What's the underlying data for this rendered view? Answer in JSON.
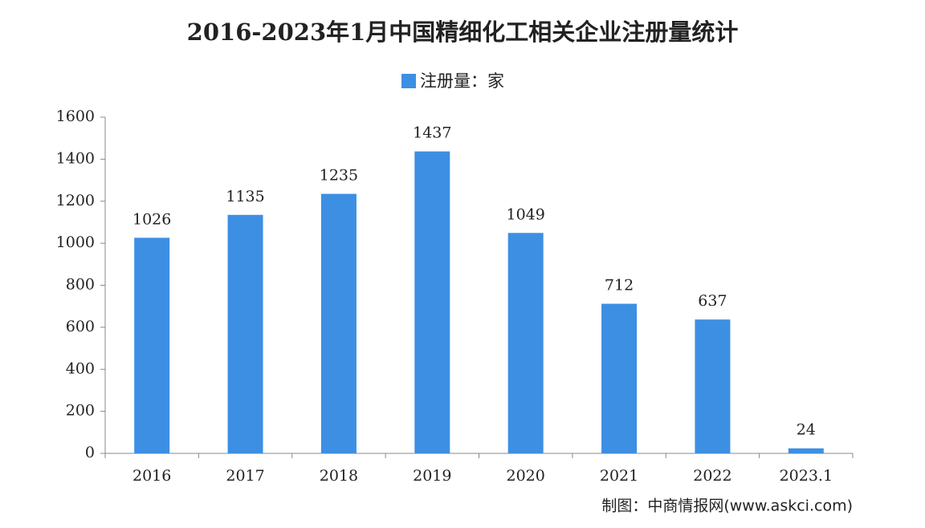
{
  "chart_data": {
    "type": "bar",
    "title": "2016-2023年1月中国精细化工相关企业注册量统计",
    "series": [
      {
        "name": "注册量：家",
        "color": "#3d8fe3",
        "values": [
          1026,
          1135,
          1235,
          1437,
          1049,
          712,
          637,
          24
        ]
      }
    ],
    "categories": [
      "2016",
      "2017",
      "2018",
      "2019",
      "2020",
      "2021",
      "2022",
      "2023.1"
    ],
    "ylim": [
      0,
      1600
    ],
    "yticks": [
      0,
      200,
      400,
      600,
      800,
      1000,
      1200,
      1400,
      1600
    ],
    "source": "制图：中商情报网(www.askci.com)"
  }
}
